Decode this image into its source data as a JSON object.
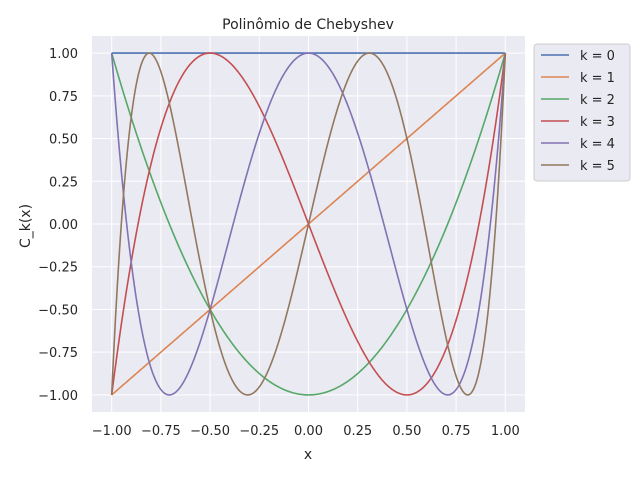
{
  "chart_data": {
    "type": "line",
    "title": "Polinômio de Chebyshev",
    "xlabel": "x",
    "ylabel": "C_k(x)",
    "xlim": [
      -1.1,
      1.1
    ],
    "ylim": [
      -1.1,
      1.1
    ],
    "x_ticks": [
      "−1.00",
      "−0.75",
      "−0.50",
      "−0.25",
      "0.00",
      "0.25",
      "0.50",
      "0.75",
      "1.00"
    ],
    "x_tick_values": [
      -1.0,
      -0.75,
      -0.5,
      -0.25,
      0.0,
      0.25,
      0.5,
      0.75,
      1.0
    ],
    "y_ticks": [
      "−1.00",
      "−0.75",
      "−0.50",
      "−0.25",
      "0.00",
      "0.25",
      "0.50",
      "0.75",
      "1.00"
    ],
    "y_tick_values": [
      -1.0,
      -0.75,
      -0.5,
      -0.25,
      0.0,
      0.25,
      0.5,
      0.75,
      1.0
    ],
    "grid": true,
    "legend_position": "upper-right-outside",
    "x_domain": [
      -1.0,
      1.0
    ],
    "series": [
      {
        "name": "k = 0",
        "k": 0,
        "color": "#4c72b0"
      },
      {
        "name": "k = 1",
        "k": 1,
        "color": "#dd8452"
      },
      {
        "name": "k = 2",
        "k": 2,
        "color": "#55a868"
      },
      {
        "name": "k = 3",
        "k": 3,
        "color": "#c44e52"
      },
      {
        "name": "k = 4",
        "k": 4,
        "color": "#8172b3"
      },
      {
        "name": "k = 5",
        "k": 5,
        "color": "#937860"
      }
    ],
    "background": "#eaeaf2",
    "grid_color": "#ffffff"
  }
}
